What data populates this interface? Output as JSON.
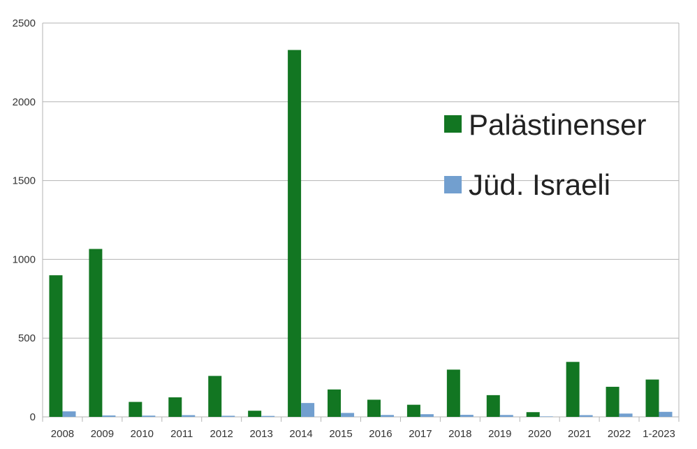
{
  "chart_data": {
    "type": "bar",
    "categories": [
      "2008",
      "2009",
      "2010",
      "2011",
      "2012",
      "2013",
      "2014",
      "2015",
      "2016",
      "2017",
      "2018",
      "2019",
      "2020",
      "2021",
      "2022",
      "1-2023"
    ],
    "series": [
      {
        "name": "Palästinenser",
        "color": "#127622",
        "values": [
          899,
          1066,
          95,
          124,
          260,
          39,
          2329,
          174,
          109,
          77,
          300,
          138,
          30,
          349,
          191,
          237
        ]
      },
      {
        "name": "Jüd. Israeli",
        "color": "#729fcf",
        "values": [
          35,
          9,
          8,
          11,
          7,
          6,
          88,
          25,
          12,
          17,
          13,
          12,
          3,
          11,
          21,
          32
        ]
      }
    ],
    "y_ticks": [
      "0",
      "500",
      "1000",
      "1500",
      "2000",
      "2500"
    ],
    "ylim": [
      0,
      2500
    ],
    "grid": true,
    "legend_position": "right-center"
  }
}
